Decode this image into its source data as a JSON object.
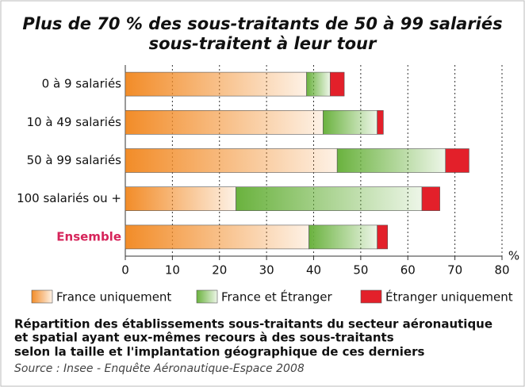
{
  "chart_data": {
    "type": "stacked_barh",
    "title": [
      "Plus de 70 % des sous-traitants de 50 à 99 salariés",
      "sous-traitent à leur tour"
    ],
    "categories": [
      "0 à 9 salariés",
      "10 à 49 salariés",
      "50 à 99 salariés",
      "100 salariés ou +",
      "Ensemble"
    ],
    "series": [
      {
        "name": "France uniquement",
        "color": "#f28c28",
        "values": [
          38.5,
          42,
          45,
          23.5,
          39
        ]
      },
      {
        "name": "France et Étranger",
        "color": "#6ab23e",
        "values": [
          5,
          11.5,
          23,
          39.5,
          14.5
        ]
      },
      {
        "name": "Étranger uniquement",
        "color": "#e3202a",
        "values": [
          3,
          1.3,
          5,
          3.8,
          2.2
        ]
      }
    ],
    "xlim": [
      0,
      80
    ],
    "xticks": [
      0,
      10,
      20,
      30,
      40,
      50,
      60,
      70,
      80
    ],
    "x_unit": "%",
    "grid": true,
    "caption": [
      "Répartition des établissements sous-traitants du secteur aéronautique",
      "et spatial ayant eux-mêmes recours à des sous-traitants",
      "selon la taille et l'implantation géographique de ces derniers"
    ],
    "source": "Source : Insee - Enquête Aéronautique-Espace 2008"
  }
}
